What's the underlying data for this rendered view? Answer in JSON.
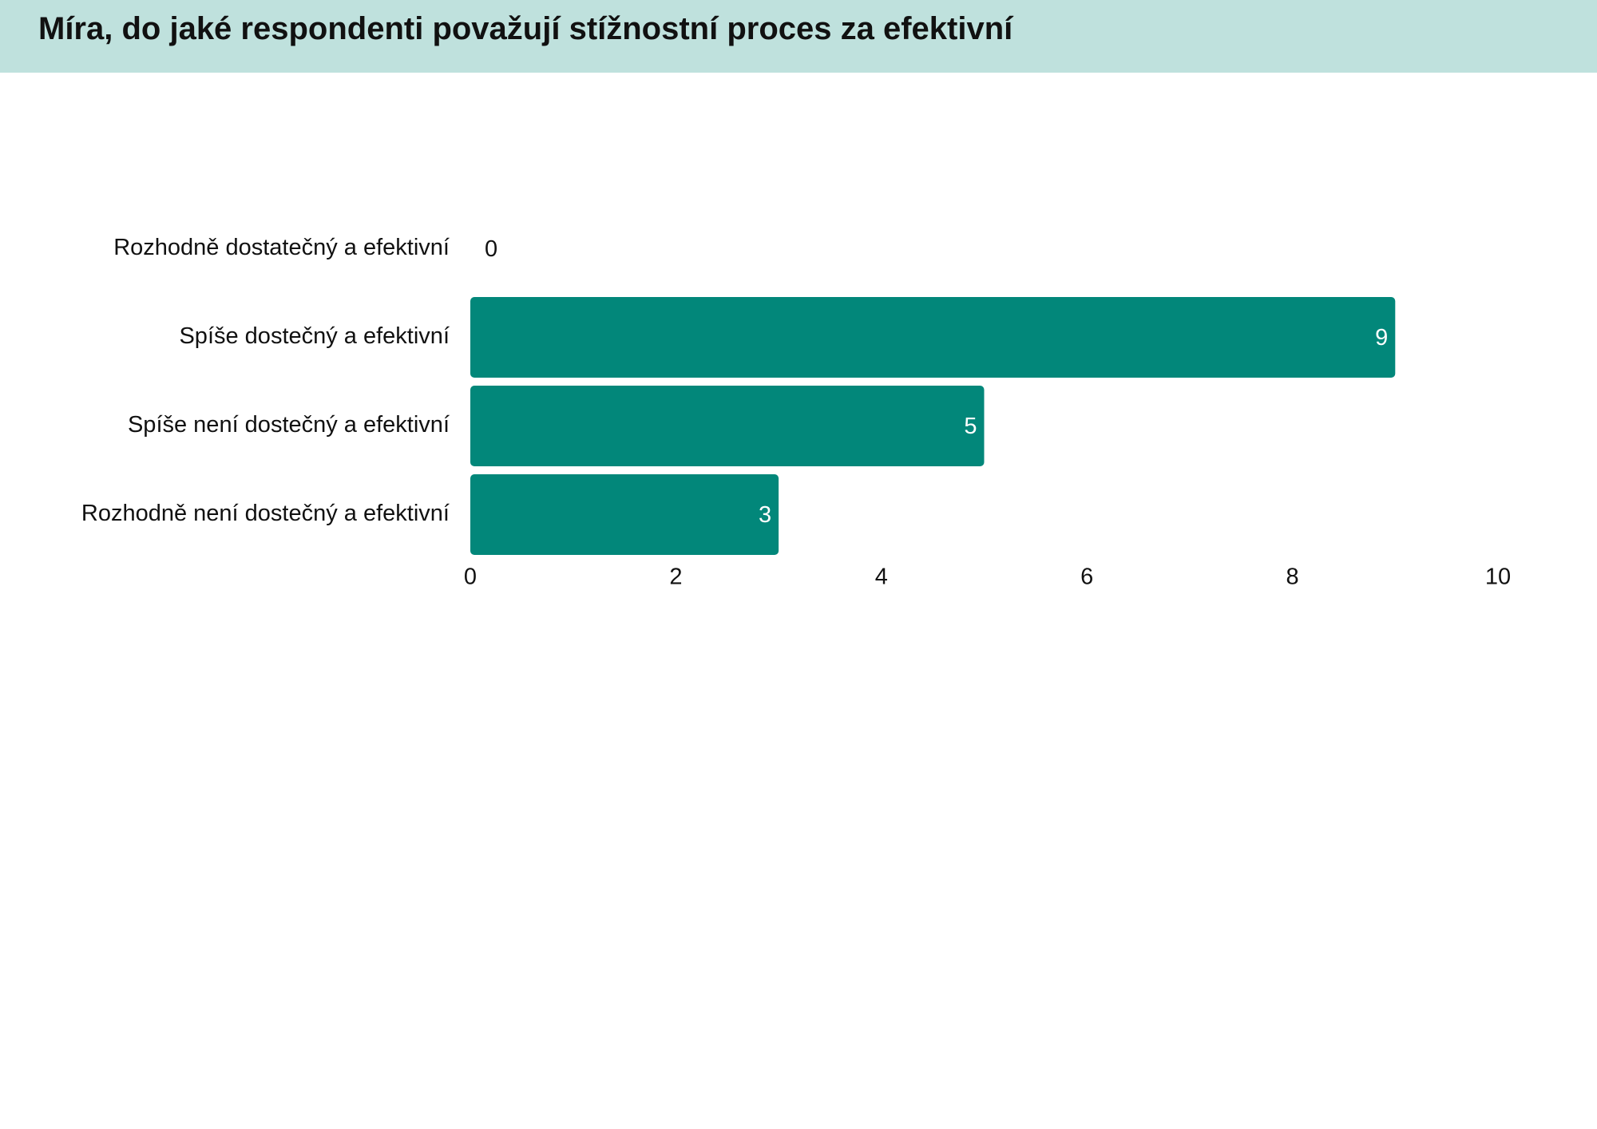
{
  "header": {
    "title": "Míra, do jaké respondenti považují stížnostní proces za efektivní"
  },
  "colors": {
    "header_background": "#bfe1dd",
    "bar": "#02877a",
    "value_label_inside": "#ffffff",
    "value_label_outside": "#111111"
  },
  "chart_data": {
    "type": "bar",
    "orientation": "horizontal",
    "categories": [
      "Rozhodně dostatečný a efektivní",
      "Spíše dostečný a efektivní",
      "Spíše není dostečný a efektivní",
      "Rozhodně není dostečný a efektivní"
    ],
    "values": [
      0,
      9,
      5,
      3
    ],
    "data_labels": [
      "0",
      "9",
      "5",
      "3"
    ],
    "xlim": [
      0,
      10
    ],
    "x_ticks": [
      "0",
      "2",
      "4",
      "6",
      "8",
      "10"
    ],
    "grid": false,
    "legend": "none"
  }
}
